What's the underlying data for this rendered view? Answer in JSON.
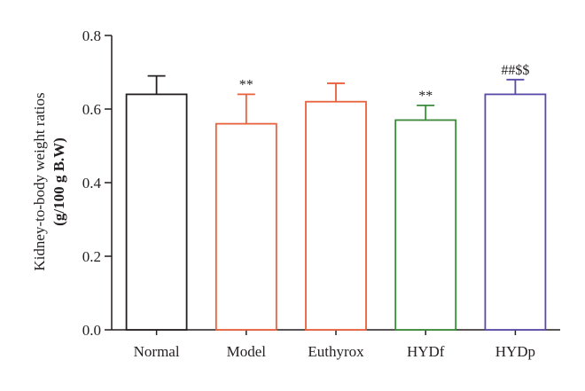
{
  "chart_data": {
    "type": "bar",
    "categories": [
      "Normal",
      "Model",
      "Euthyrox",
      "HYDf",
      "HYDp"
    ],
    "values": [
      0.64,
      0.56,
      0.62,
      0.57,
      0.64
    ],
    "errors": [
      0.05,
      0.08,
      0.05,
      0.04,
      0.04
    ],
    "annotations": [
      "",
      "**",
      "",
      "**",
      "##$$"
    ],
    "colors": [
      "#231f20",
      "#e8613c",
      "#e8613c",
      "#3a8a3a",
      "#5a4aa8"
    ],
    "ylabel_line1": "Kidney-to-body weight ratios",
    "ylabel_line2": "(g/100 g B.W)",
    "ylim": [
      0,
      0.8
    ],
    "yticks": [
      "0.0",
      "0.2",
      "0.4",
      "0.6",
      "0.8"
    ],
    "grid": false
  }
}
